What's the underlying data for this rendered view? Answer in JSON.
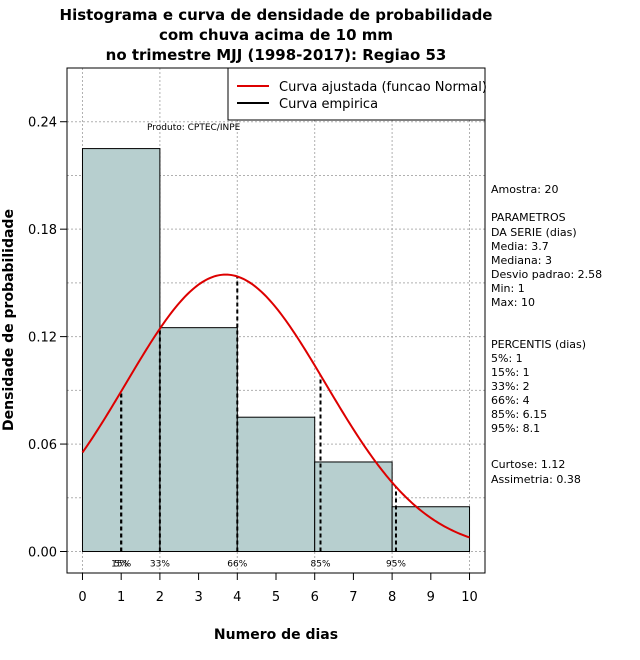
{
  "chart_data": {
    "type": "bar",
    "title_lines": [
      "Histograma e curva de densidade de probabilidade",
      "com chuva acima de 10 mm",
      "no trimestre MJJ (1998-2017): Regiao 53"
    ],
    "xlabel": "Numero de dias",
    "ylabel": "Densidade de probabilidade",
    "xlim": [
      -0.4,
      10.4
    ],
    "ylim": [
      -0.012,
      0.27
    ],
    "xticks": [
      0,
      1,
      2,
      3,
      4,
      5,
      6,
      7,
      8,
      9,
      10
    ],
    "yticks": [
      0.0,
      0.06,
      0.12,
      0.18,
      0.24
    ],
    "ytick_labels": [
      "0.00",
      "0.06",
      "0.12",
      "0.18",
      "0.24"
    ],
    "grid": true,
    "bins": [
      {
        "start": 0,
        "end": 2,
        "density": 0.225
      },
      {
        "start": 2,
        "end": 4,
        "density": 0.125
      },
      {
        "start": 4,
        "end": 6,
        "density": 0.075
      },
      {
        "start": 6,
        "end": 8,
        "density": 0.05
      },
      {
        "start": 8,
        "end": 10,
        "density": 0.025
      }
    ],
    "normal_fit": {
      "mean": 3.7,
      "sd": 2.58
    },
    "legend": {
      "position": "top-right",
      "entries": [
        {
          "label": "Curva ajustada (funcao Normal)",
          "color": "#dd0000"
        },
        {
          "label": "Curva empirica",
          "color": "#000000"
        }
      ]
    },
    "percentile_lines": [
      {
        "label": "5%",
        "x": 1
      },
      {
        "label": "15%",
        "x": 1
      },
      {
        "label": "33%",
        "x": 2
      },
      {
        "label": "66%",
        "x": 4
      },
      {
        "label": "85%",
        "x": 6.15
      },
      {
        "label": "95%",
        "x": 8.1
      }
    ],
    "annotation": "Produto: CPTEC/INPE",
    "stats_text": [
      "Amostra: 20",
      " PARAMETROS",
      "DA SERIE (dias)",
      "  Media: 3.7",
      "  Mediana: 3",
      "  Desvio padrao: 2.58",
      "  Min: 1",
      "  Max: 10",
      "PERCENTIS (dias)",
      "  5%: 1",
      "  15%: 1",
      "  33%: 2",
      "  66%: 4",
      "  85%: 6.15",
      "  95%: 8.1",
      "   Curtose: 1.12",
      "Assimetria: 0.38"
    ],
    "colors": {
      "bar_fill": "#b7cfcf",
      "bar_stroke": "#000000",
      "curve": "#dd0000",
      "grid": "#b0b0b0"
    }
  }
}
